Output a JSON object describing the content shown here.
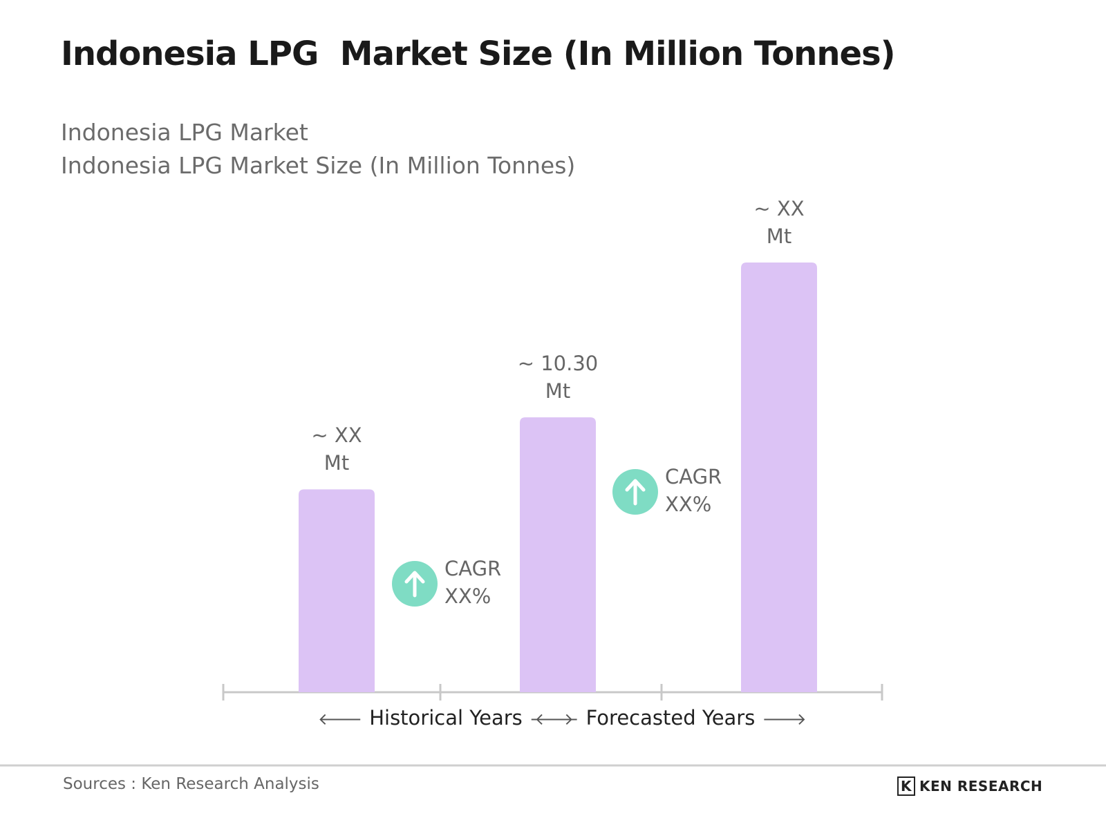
{
  "chart_data": {
    "type": "bar",
    "title": "Indonesia LPG  Market Size (In Million Tonnes)",
    "subtitle": [
      "Indonesia LPG Market",
      "Indonesia LPG Market Size (In Million Tonnes)"
    ],
    "categories": [
      null,
      null,
      null
    ],
    "values": [
      7.6,
      10.3,
      16.1
    ],
    "value_labels": [
      "~ XX\nMt",
      "~ 10.30\nMt",
      "~ XX\nMt"
    ],
    "color": "#dcc3f5",
    "annotations": [
      "CAGR\nXX%",
      "CAGR\nXX%"
    ],
    "annotation_color": "#7fdcc4",
    "periods": [
      "Historical Years",
      "Forecasted Years"
    ],
    "source": "Sources : Ken Research Analysis",
    "logo": "KEN RESEARCH"
  }
}
